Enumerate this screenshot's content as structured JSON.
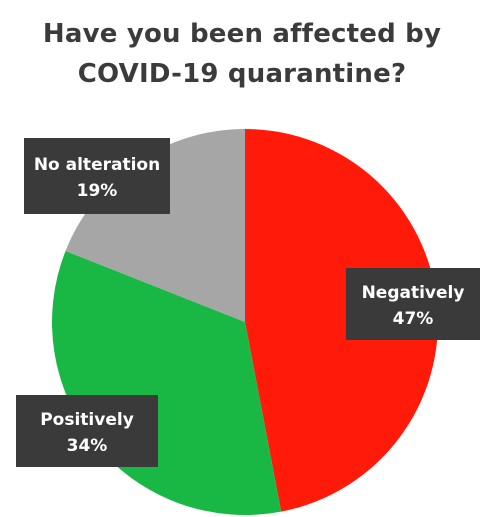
{
  "title_lines": [
    "Have you been affected by",
    "COVID-19 quarantine?"
  ],
  "chart_data": {
    "type": "pie",
    "title": "Have you been affected by COVID-19 quarantine?",
    "start_angle_deg": 0,
    "direction": "clockwise",
    "slices": [
      {
        "label": "Negatively",
        "value": 47,
        "display": "47%",
        "color": "#ff1a0a"
      },
      {
        "label": "Positively",
        "value": 34,
        "display": "34%",
        "color": "#19b845"
      },
      {
        "label": "No alteration",
        "value": 19,
        "display": "19%",
        "color": "#a6a6a6"
      }
    ],
    "data_label_style": {
      "box_color": "#3a3a3a",
      "text_color": "#ffffff"
    },
    "legend": "none"
  }
}
